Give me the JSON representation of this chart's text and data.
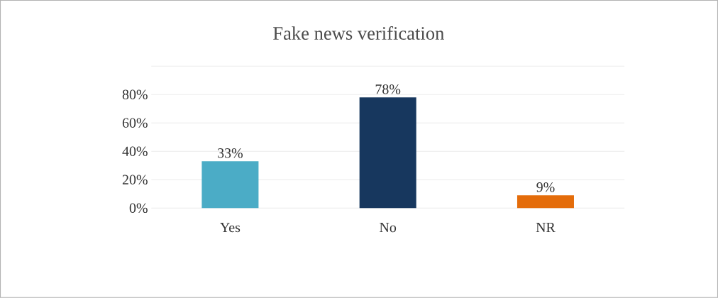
{
  "chart_data": {
    "type": "bar",
    "title": "Fake news verification",
    "categories": [
      "Yes",
      "No",
      "NR"
    ],
    "values": [
      33,
      78,
      9
    ],
    "colors": [
      "#4bacc6",
      "#17375e",
      "#e46c0a"
    ],
    "value_labels": [
      "33%",
      "78%",
      "9%"
    ],
    "ylim": [
      0,
      100
    ],
    "yticks": [
      {
        "value": 0,
        "label": "0%"
      },
      {
        "value": 20,
        "label": "20%"
      },
      {
        "value": 40,
        "label": "40%"
      },
      {
        "value": 60,
        "label": "60%"
      },
      {
        "value": 80,
        "label": "80%"
      },
      {
        "value": 100,
        "label": null
      }
    ],
    "grid": "y"
  }
}
